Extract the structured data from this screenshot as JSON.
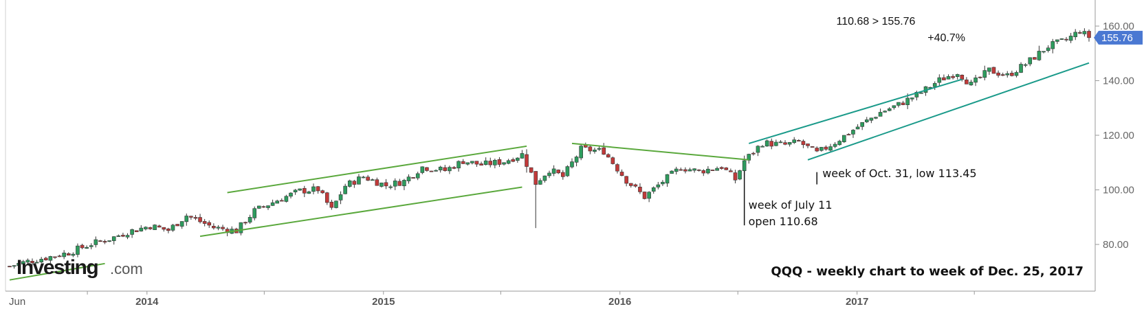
{
  "chart_data": {
    "type": "candlestick",
    "title": "QQQ - weekly chart to week of Dec. 25, 2017",
    "ylim": [
      65,
      170
    ],
    "y_ticks": [
      "80.00",
      "100.00",
      "120.00",
      "140.00",
      "160.00"
    ],
    "x_ticks": [
      "Jun",
      "2014",
      "2015",
      "2016",
      "2017"
    ],
    "last_price": "155.76",
    "price_path": [
      [
        "2013-06-03",
        72.0
      ],
      [
        "2013-07-01",
        73.8
      ],
      [
        "2013-08-05",
        75.5
      ],
      [
        "2013-09-02",
        77.0
      ],
      [
        "2013-10-07",
        80.2
      ],
      [
        "2013-11-04",
        82.0
      ],
      [
        "2013-12-02",
        84.6
      ],
      [
        "2014-01-06",
        86.8
      ],
      [
        "2014-02-03",
        85.2
      ],
      [
        "2014-03-03",
        90.6
      ],
      [
        "2014-04-14",
        86.2
      ],
      [
        "2014-05-19",
        85.0
      ],
      [
        "2014-06-16",
        92.3
      ],
      [
        "2014-07-21",
        96.2
      ],
      [
        "2014-08-25",
        99.6
      ],
      [
        "2014-09-22",
        100.2
      ],
      [
        "2014-10-13",
        92.7
      ],
      [
        "2014-11-03",
        101.5
      ],
      [
        "2014-12-01",
        104.8
      ],
      [
        "2015-01-05",
        101.6
      ],
      [
        "2015-02-02",
        103.2
      ],
      [
        "2015-03-02",
        108.4
      ],
      [
        "2015-04-06",
        107.1
      ],
      [
        "2015-05-04",
        110.6
      ],
      [
        "2015-06-01",
        109.2
      ],
      [
        "2015-07-06",
        110.4
      ],
      [
        "2015-08-03",
        113.0
      ],
      [
        "2015-08-24",
        102.5
      ],
      [
        "2015-09-14",
        107.4
      ],
      [
        "2015-10-05",
        104.8
      ],
      [
        "2015-11-02",
        114.9
      ],
      [
        "2015-12-07",
        114.2
      ],
      [
        "2016-01-11",
        103.5
      ],
      [
        "2016-02-08",
        97.4
      ],
      [
        "2016-03-07",
        103.1
      ],
      [
        "2016-04-04",
        108.2
      ],
      [
        "2016-05-02",
        106.8
      ],
      [
        "2016-06-06",
        108.5
      ],
      [
        "2016-06-27",
        103.8
      ],
      [
        "2016-07-11",
        110.68
      ],
      [
        "2016-08-08",
        117.2
      ],
      [
        "2016-09-12",
        116.5
      ],
      [
        "2016-10-03",
        117.6
      ],
      [
        "2016-10-31",
        113.45
      ],
      [
        "2016-11-28",
        117.4
      ],
      [
        "2017-01-02",
        123.1
      ],
      [
        "2017-02-06",
        128.4
      ],
      [
        "2017-03-06",
        131.2
      ],
      [
        "2017-04-10",
        135.7
      ],
      [
        "2017-05-08",
        140.2
      ],
      [
        "2017-06-05",
        143.1
      ],
      [
        "2017-06-26",
        138.5
      ],
      [
        "2017-07-24",
        143.8
      ],
      [
        "2017-08-21",
        141.8
      ],
      [
        "2017-09-18",
        146.1
      ],
      [
        "2017-10-23",
        152.6
      ],
      [
        "2017-11-20",
        154.9
      ],
      [
        "2017-12-11",
        158.3
      ],
      [
        "2017-12-25",
        155.76
      ]
    ],
    "trendlines": [
      [
        [
          "2013-06-03",
          67.0
        ],
        [
          "2013-10-28",
          73.0
        ]
      ],
      [
        [
          "2014-05-05",
          99.0
        ],
        [
          "2015-08-10",
          116.0
        ]
      ],
      [
        [
          "2014-03-24",
          83.0
        ],
        [
          "2015-08-03",
          101.0
        ]
      ],
      [
        [
          "2015-10-19",
          117.0
        ],
        [
          "2016-07-18",
          111.0
        ]
      ],
      [
        [
          "2016-07-18",
          117.0
        ],
        [
          "2017-06-12",
          140.5
        ]
      ],
      [
        [
          "2016-10-17",
          111.0
        ],
        [
          "2017-12-25",
          146.5
        ]
      ]
    ],
    "annotations": [
      {
        "lines": [
          "week of July 11",
          "open 110.68"
        ],
        "date": "2016-07-11"
      },
      {
        "lines": [
          "week of Oct. 31, low 113.45"
        ],
        "date": "2016-10-31"
      }
    ],
    "change_box": {
      "line1": "110.68 > 155.76",
      "line2": "+40.7%"
    },
    "colors": {
      "up": "#2e9c5e",
      "down": "#c23a3a",
      "trend": "#5aa83c",
      "channel": "#1a9a8a",
      "price_label_bg": "#4a78d2"
    }
  },
  "logo": {
    "main": "Investing",
    "suffix": ".com"
  }
}
